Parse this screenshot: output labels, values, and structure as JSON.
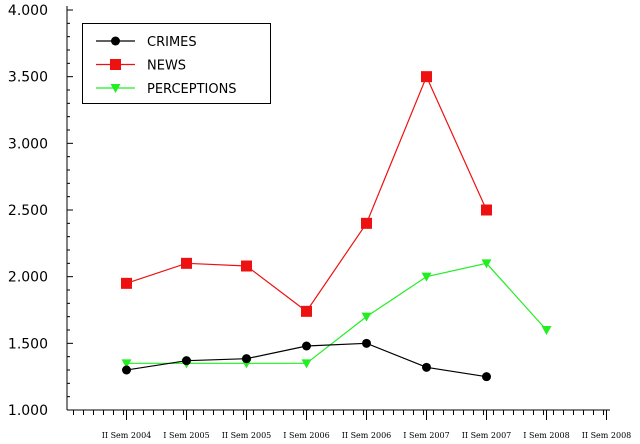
{
  "chart_data": {
    "type": "line",
    "title": "",
    "xlabel": "",
    "ylabel": "",
    "categories": [
      "II Sem 2004",
      "I Sem 2005",
      "II Sem 2005",
      "I Sem 2006",
      "II Sem 2006",
      "I Sem 2007",
      "II Sem 2007",
      "I Sem 2008",
      "II Sem 2008"
    ],
    "ylim": [
      1000,
      4000
    ],
    "y_ticks": [
      1000,
      1500,
      2000,
      2500,
      3000,
      3500,
      4000
    ],
    "y_tick_labels": [
      "1.000",
      "1.500",
      "2.000",
      "2.500",
      "3.000",
      "3.500",
      "4.000"
    ],
    "grid": false,
    "legend_position": "top-left",
    "series": [
      {
        "name": "CRIMES",
        "color": "#000000",
        "marker": "circle",
        "values": [
          1300,
          1370,
          1385,
          1480,
          1500,
          1320,
          1250,
          null,
          null
        ]
      },
      {
        "name": "NEWS",
        "color": "#ee1111",
        "marker": "square",
        "values": [
          1950,
          2100,
          2080,
          1740,
          2400,
          3500,
          2500,
          null,
          null
        ]
      },
      {
        "name": "PERCEPTIONS",
        "color": "#22ee22",
        "marker": "triangle-down",
        "values": [
          1350,
          1350,
          1350,
          1350,
          1700,
          2000,
          2100,
          1600,
          null
        ]
      }
    ]
  }
}
